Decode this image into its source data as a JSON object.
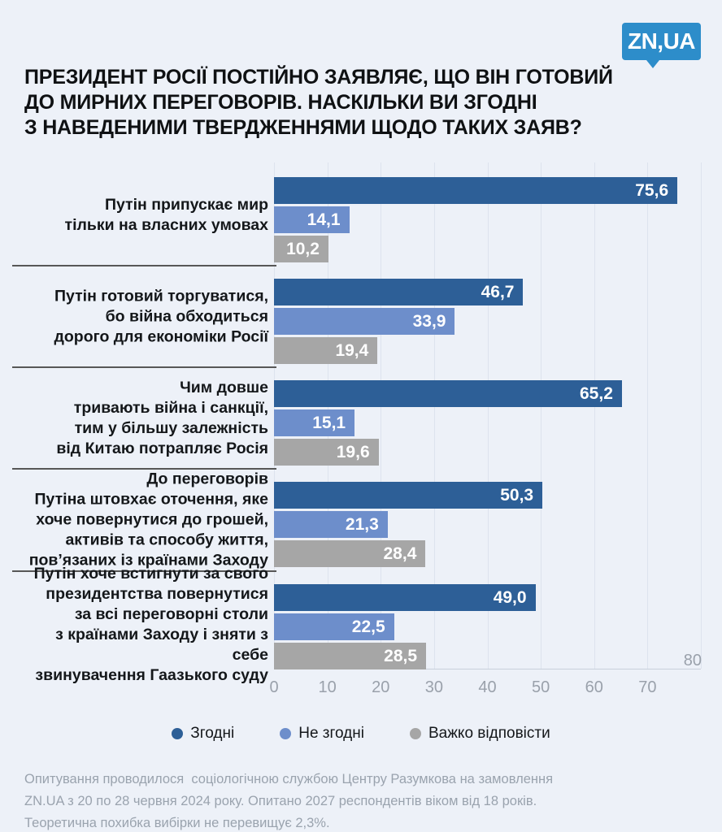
{
  "page": {
    "background": "#edf1f8"
  },
  "logo": {
    "text": "ZN,UA",
    "color": "#2d8dca"
  },
  "title": "ПРЕЗИДЕНТ РОСІЇ ПОСТІЙНО ЗАЯВЛЯЄ, ЩО ВІН ГОТОВИЙ\nДО МИРНИХ ПЕРЕГОВОРІВ. НАСКІЛЬКИ ВИ ЗГОДНІ\nЗ НАВЕДЕНИМИ ТВЕРДЖЕННЯМИ ЩОДО ТАКИХ ЗАЯВ?",
  "chart_data": {
    "type": "bar",
    "orientation": "horizontal",
    "title": "",
    "xlabel": "",
    "ylabel": "",
    "xlim": [
      0,
      80
    ],
    "x_ticks": [
      0,
      10,
      20,
      30,
      40,
      50,
      60,
      70
    ],
    "x_tick_max": "80",
    "grid": true,
    "legend_position": "bottom",
    "categories": [
      "Путін припускає мир\nтільки на власних умовах",
      "Путін готовий торгуватися,\nбо війна обходиться\nдорого для економіки Росії",
      "Чим довше\nтривають війна і санкції,\nтим у більшу залежність\nвід Китаю потрапляє Росія",
      "До переговорів\nПутіна штовхає оточення, яке\nхоче повернутися до грошей,\nактивів та способу життя,\nпов’язаних із країнами Заходу",
      "Путін хоче встигнути за свого\nпрезидентства повернутися\nза всі переговорні столи\nз країнами Заходу і зняти з себе\nзвинувачення Гаазького суду"
    ],
    "series": [
      {
        "name": "Згодні",
        "color": "#2d5f97",
        "values": [
          75.6,
          46.7,
          65.2,
          50.3,
          49.0
        ]
      },
      {
        "name": "Не згодні",
        "color": "#6d8ecb",
        "values": [
          14.1,
          33.9,
          15.1,
          21.3,
          22.5
        ]
      },
      {
        "name": "Важко відповісти",
        "color": "#a6a6a6",
        "values": [
          10.2,
          19.4,
          19.6,
          28.4,
          28.5
        ]
      }
    ],
    "value_display": [
      [
        "75,6",
        "14,1",
        "10,2"
      ],
      [
        "46,7",
        "33,9",
        "19,4"
      ],
      [
        "65,2",
        "15,1",
        "19,6"
      ],
      [
        "50,3",
        "21,3",
        "28,4"
      ],
      [
        "49,0",
        "22,5",
        "28,5"
      ]
    ]
  },
  "legend": {
    "items": [
      {
        "label": "Згодні",
        "color": "#2d5f97"
      },
      {
        "label": "Не згодні",
        "color": "#6d8ecb"
      },
      {
        "label": "Важко відповісти",
        "color": "#a6a6a6"
      }
    ]
  },
  "footer": "Опитування проводилося  соціологічною службою Центру Разумкова на замовлення\nZN.UA з 20 по 28 червня 2024 року. Опитано 2027 респондентів віком від 18 років.\nТеоретична похибка вибірки не перевищує 2,3%."
}
